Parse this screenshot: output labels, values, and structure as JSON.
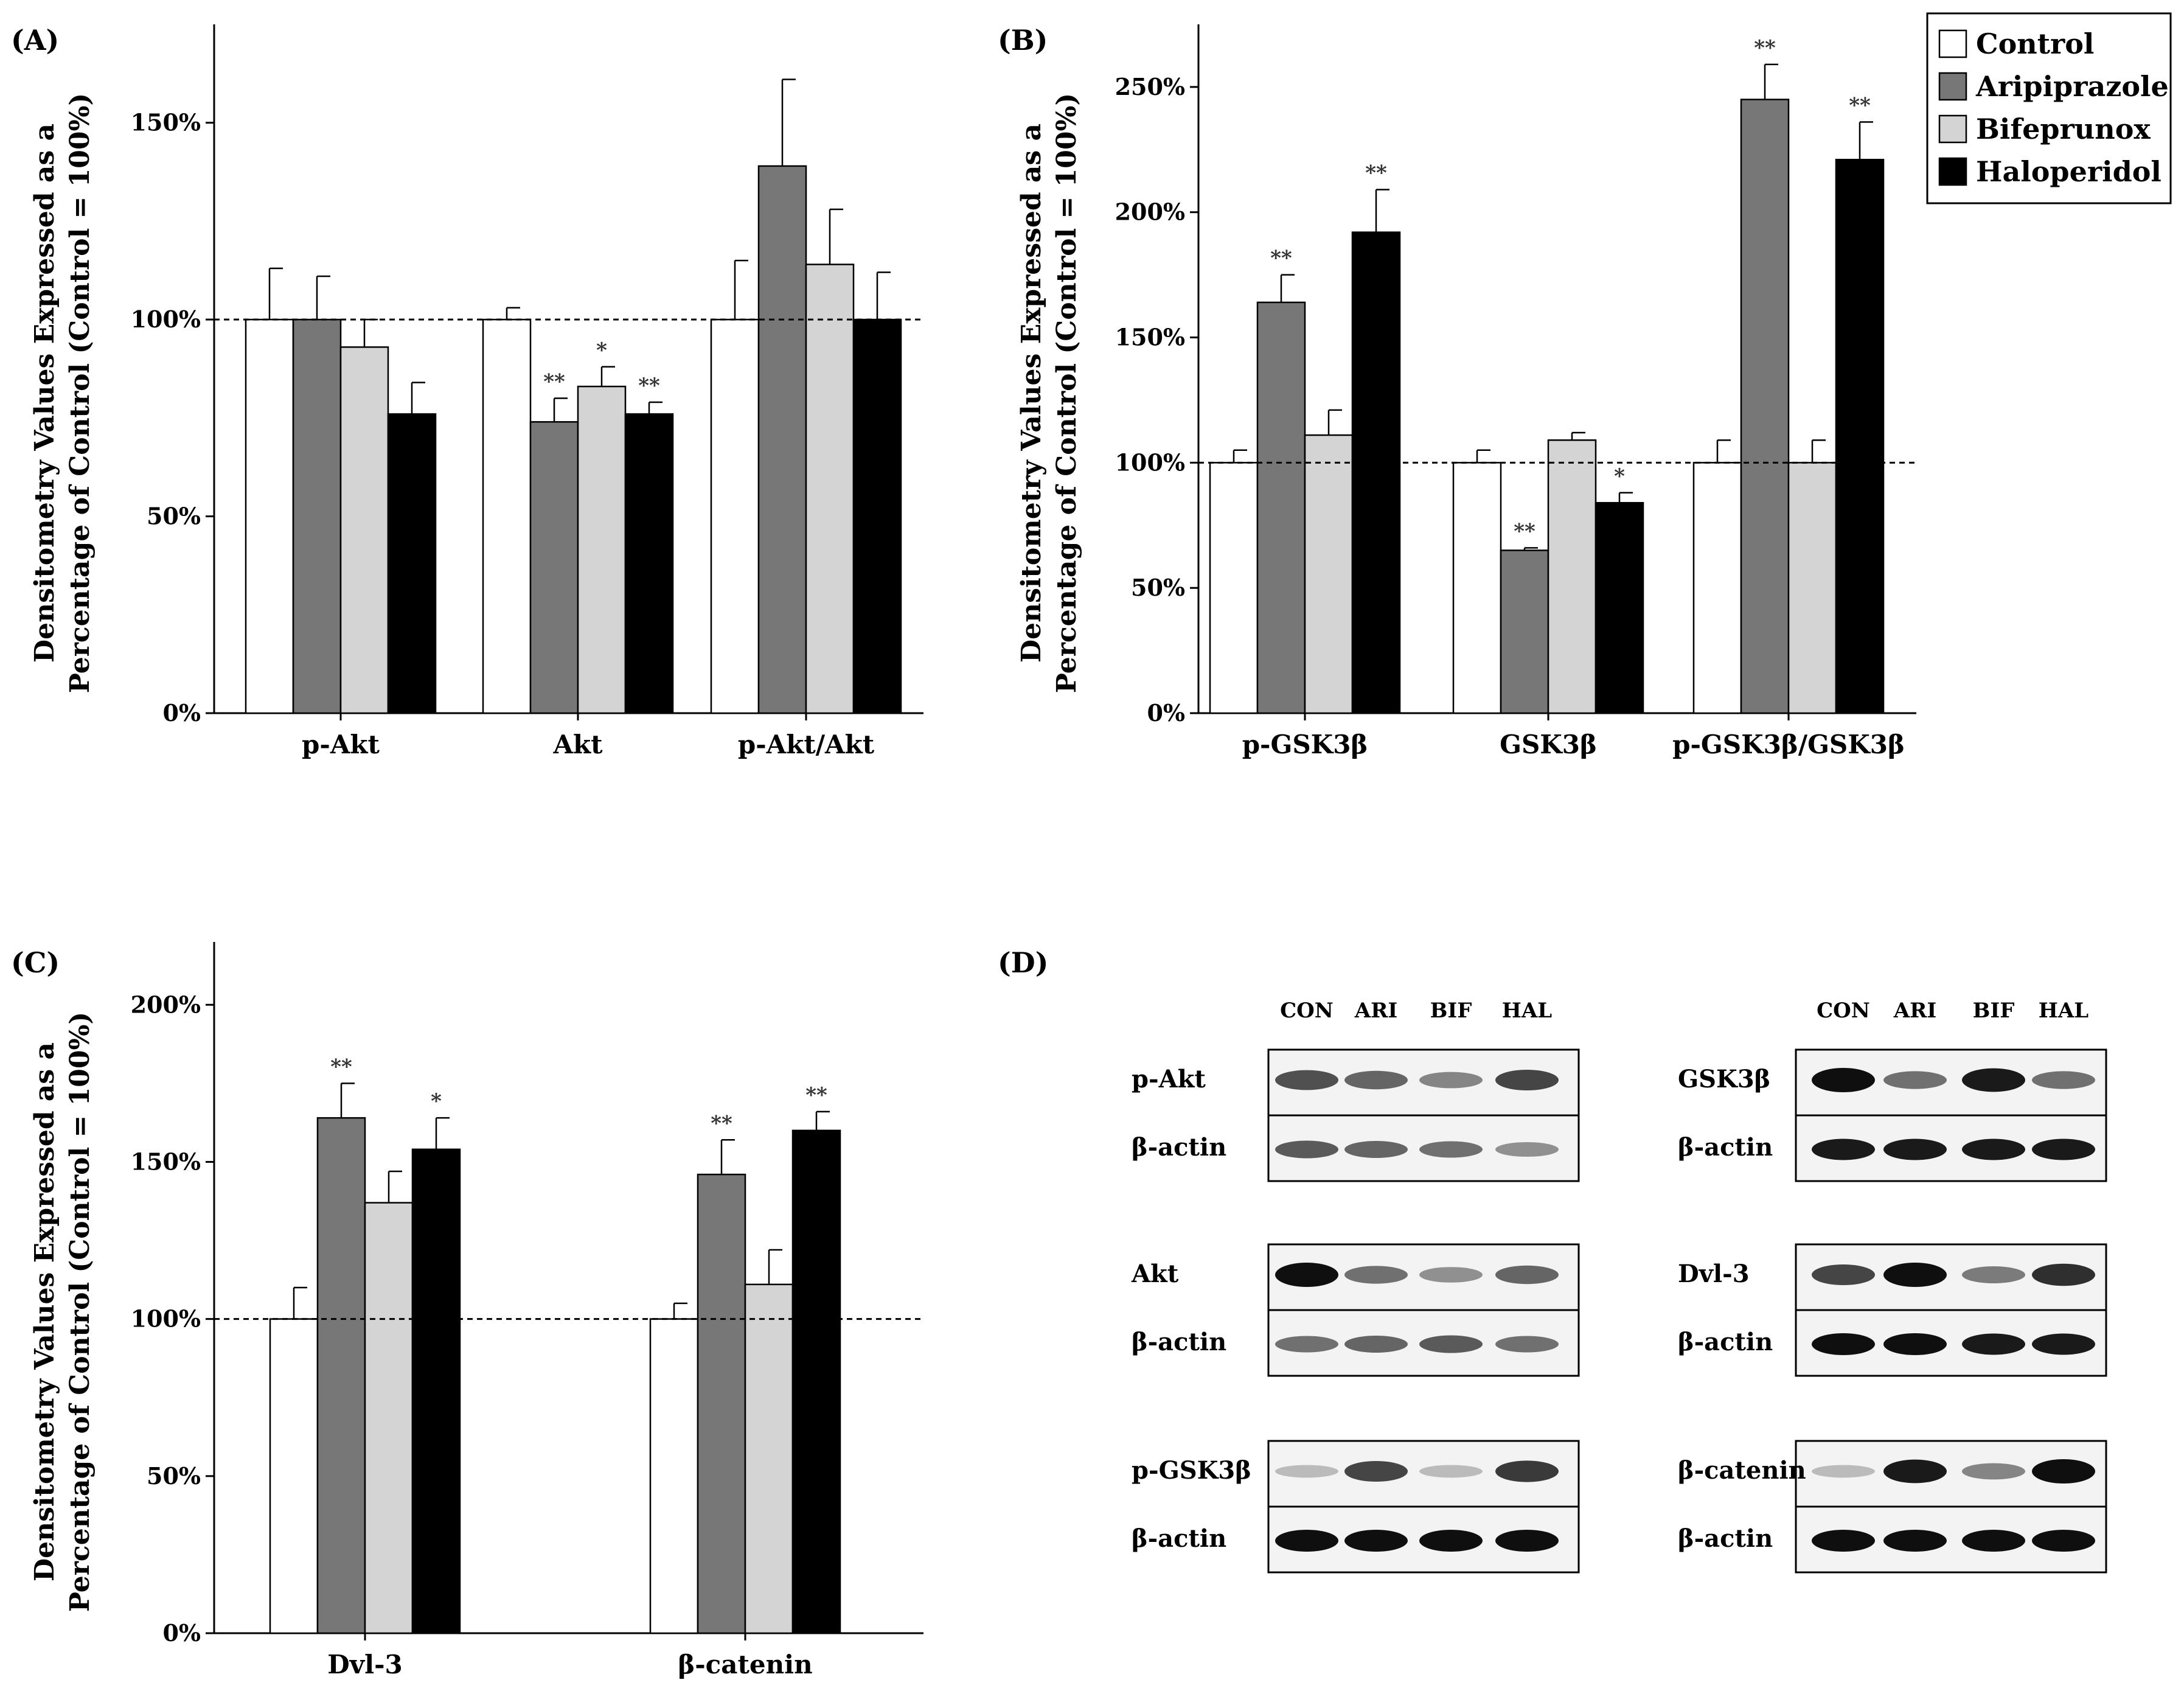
{
  "legend": {
    "entries": [
      {
        "name": "Control",
        "color": "#ffffff"
      },
      {
        "name": "Aripiprazole",
        "color": "#777777"
      },
      {
        "name": "Bifeprunox",
        "color": "#d4d4d4"
      },
      {
        "name": "Haloperidol",
        "color": "#000000"
      }
    ]
  },
  "chart_data": [
    {
      "panel": "(A)",
      "type": "bar",
      "ylabel": "Densitometry Values Expressed as a Percentage of Control (Control = 100%)",
      "ylim": [
        0,
        175
      ],
      "yticks": [
        0,
        50,
        100,
        150
      ],
      "tick_labels": [
        "0%",
        "50%",
        "100%",
        "150%"
      ],
      "reference_line": 100,
      "categories": [
        "p-Akt",
        "Akt",
        "p-Akt/Akt"
      ],
      "series": [
        {
          "name": "Control",
          "values": [
            100,
            100,
            100
          ],
          "errors": [
            13,
            3,
            15
          ],
          "stars": [
            "",
            "",
            ""
          ]
        },
        {
          "name": "Aripiprazole",
          "values": [
            100,
            74,
            139
          ],
          "errors": [
            11,
            6,
            22
          ],
          "stars": [
            "",
            "**",
            ""
          ]
        },
        {
          "name": "Bifeprunox",
          "values": [
            93,
            83,
            114
          ],
          "errors": [
            7,
            5,
            14
          ],
          "stars": [
            "",
            "*",
            ""
          ]
        },
        {
          "name": "Haloperidol",
          "values": [
            76,
            76,
            100
          ],
          "errors": [
            8,
            3,
            12
          ],
          "stars": [
            "",
            "**",
            ""
          ]
        }
      ]
    },
    {
      "panel": "(B)",
      "type": "bar",
      "ylabel": "Densitometry Values Expressed as a Percentage of Control (Control = 100%)",
      "ylim": [
        0,
        275
      ],
      "yticks": [
        0,
        50,
        100,
        150,
        200,
        250
      ],
      "tick_labels": [
        "0%",
        "50%",
        "100%",
        "150%",
        "200%",
        "250%"
      ],
      "reference_line": 100,
      "categories": [
        "p-GSK3β",
        "GSK3β",
        "p-GSK3β/GSK3β"
      ],
      "series": [
        {
          "name": "Control",
          "values": [
            100,
            100,
            100
          ],
          "errors": [
            5,
            5,
            9
          ],
          "stars": [
            "",
            "",
            ""
          ]
        },
        {
          "name": "Aripiprazole",
          "values": [
            164,
            65,
            245
          ],
          "errors": [
            11,
            1,
            14
          ],
          "stars": [
            "**",
            "**",
            "**"
          ]
        },
        {
          "name": "Bifeprunox",
          "values": [
            111,
            109,
            100
          ],
          "errors": [
            10,
            3,
            9
          ],
          "stars": [
            "",
            "",
            ""
          ]
        },
        {
          "name": "Haloperidol",
          "values": [
            192,
            84,
            221
          ],
          "errors": [
            17,
            4,
            15
          ],
          "stars": [
            "**",
            "*",
            "**"
          ]
        }
      ]
    },
    {
      "panel": "(C)",
      "type": "bar",
      "ylabel": "Densitometry Values Expressed as a Percentage of Control (Control = 100%)",
      "ylim": [
        0,
        220
      ],
      "yticks": [
        0,
        50,
        100,
        150,
        200
      ],
      "tick_labels": [
        "0%",
        "50%",
        "100%",
        "150%",
        "200%"
      ],
      "reference_line": 100,
      "categories": [
        "Dvl-3",
        "β-catenin"
      ],
      "series": [
        {
          "name": "Control",
          "values": [
            100,
            100
          ],
          "errors": [
            10,
            5
          ],
          "stars": [
            "",
            ""
          ]
        },
        {
          "name": "Aripiprazole",
          "values": [
            164,
            146
          ],
          "errors": [
            11,
            11
          ],
          "stars": [
            "**",
            "**"
          ]
        },
        {
          "name": "Bifeprunox",
          "values": [
            137,
            111
          ],
          "errors": [
            10,
            11
          ],
          "stars": [
            "",
            ""
          ]
        },
        {
          "name": "Haloperidol",
          "values": [
            154,
            160
          ],
          "errors": [
            10,
            6
          ],
          "stars": [
            "*",
            "**"
          ]
        }
      ]
    }
  ],
  "blots": {
    "panel": "(D)",
    "lanes": [
      "CON",
      "ARI",
      "BIF",
      "HAL"
    ],
    "groups": [
      {
        "target": "p-Akt",
        "loading": "β-actin",
        "target_intensity": [
          0.7,
          0.6,
          0.45,
          0.75
        ],
        "loading_intensity": [
          0.65,
          0.6,
          0.55,
          0.4
        ]
      },
      {
        "target": "GSK3β",
        "loading": "β-actin",
        "target_intensity": [
          1.0,
          0.55,
          0.95,
          0.55
        ],
        "loading_intensity": [
          0.95,
          0.95,
          0.95,
          0.95
        ]
      },
      {
        "target": "Akt",
        "loading": "β-actin",
        "target_intensity": [
          1.0,
          0.55,
          0.4,
          0.6
        ],
        "loading_intensity": [
          0.55,
          0.6,
          0.65,
          0.55
        ]
      },
      {
        "target": "Dvl-3",
        "loading": "β-actin",
        "target_intensity": [
          0.75,
          1.0,
          0.5,
          0.85
        ],
        "loading_intensity": [
          1.0,
          1.0,
          0.95,
          0.95
        ]
      },
      {
        "target": "p-GSK3β",
        "loading": "β-actin",
        "target_intensity": [
          0.2,
          0.75,
          0.2,
          0.8
        ],
        "loading_intensity": [
          1.0,
          1.0,
          1.0,
          1.0
        ]
      },
      {
        "target": "β-catenin",
        "loading": "β-actin",
        "target_intensity": [
          0.2,
          0.95,
          0.45,
          1.0
        ],
        "loading_intensity": [
          1.0,
          1.0,
          1.0,
          1.0
        ]
      }
    ]
  }
}
